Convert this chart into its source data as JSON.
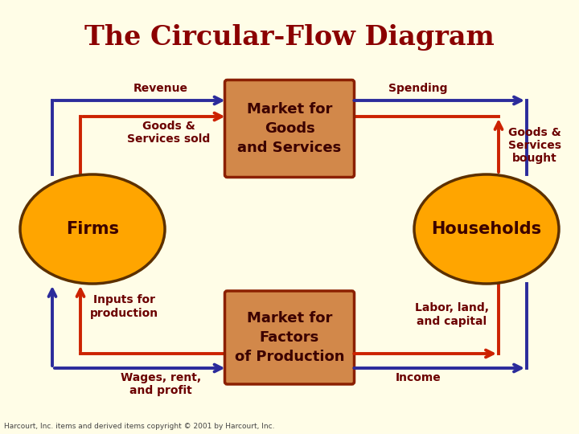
{
  "title": "The Circular-Flow Diagram",
  "title_color": "#8B0000",
  "bg_color": "#FFFDE7",
  "box_fill": "#D2884A",
  "box_edge": "#8B2000",
  "circle_fill": "#FFA500",
  "circle_edge": "#5C3000",
  "blue_color": "#2B2B9B",
  "red_color": "#CC2200",
  "label_color": "#6B0000",
  "firms_label": "Firms",
  "households_label": "Households",
  "market_goods_label": "Market for\nGoods\nand Services",
  "market_factors_label": "Market for\nFactors\nof Production",
  "revenue_label": "Revenue",
  "spending_label": "Spending",
  "goods_sold_label": "Goods &\nServices sold",
  "goods_bought_label": "Goods &\nServices\nbought",
  "inputs_label": "Inputs for\nproduction",
  "wages_label": "Wages, rent,\nand profit",
  "labor_label": "Labor, land,\nand capital",
  "income_label": "Income",
  "copyright_label": "Harcourt, Inc. items and derived items copyright © 2001 by Harcourt, Inc."
}
